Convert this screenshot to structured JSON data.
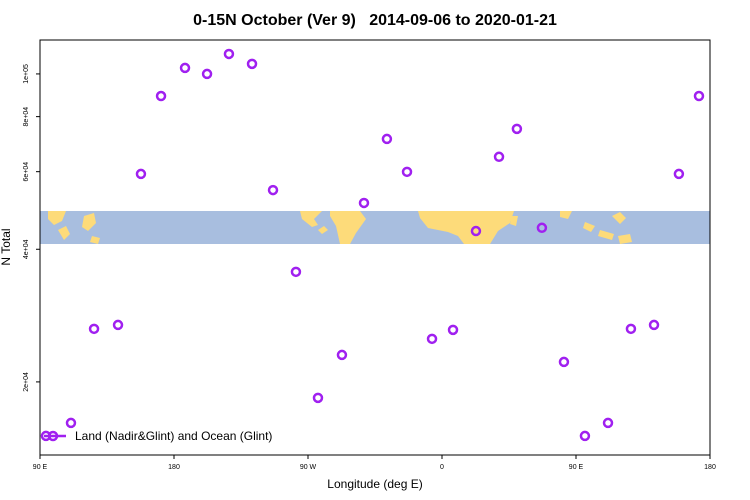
{
  "chart_data": {
    "type": "scatter",
    "title": "0-15N October (Ver 9)   2014-09-06 to 2020-01-21",
    "x_label": "Longitude (deg E)",
    "y_label": "N Total",
    "log_y": true,
    "legend": "lower left",
    "xlim": [
      90,
      540
    ],
    "ylim": [
      13650,
      119400
    ],
    "xticks": [
      {
        "value": 90,
        "label": "90 E"
      },
      {
        "value": 180,
        "label": "180"
      },
      {
        "value": 270,
        "label": "90 W"
      },
      {
        "value": 360,
        "label": "0"
      },
      {
        "value": 450,
        "label": "90 E"
      },
      {
        "value": 540,
        "label": "180"
      }
    ],
    "yticks": [
      {
        "value": 20000,
        "label": "2e+04"
      },
      {
        "value": 40000,
        "label": "4e+04"
      },
      {
        "value": 60000,
        "label": "6e+04"
      },
      {
        "value": 80000,
        "label": "8e+04"
      },
      {
        "value": 100000,
        "label": "1e+05"
      }
    ],
    "series": [
      {
        "name": "Land (Nadir&Glint) and Ocean (Glint)",
        "color": "#a020f0",
        "x": [
          94,
          110.8,
          126.3,
          142.4,
          157.8,
          171.3,
          187.4,
          202.2,
          216.9,
          232.4,
          246.5,
          261.9,
          276.7,
          292.8,
          307.6,
          323,
          336.5,
          353.3,
          367.4,
          382.8,
          398.3,
          410.3,
          427.1,
          441.9,
          456,
          471.5,
          486.9,
          502.4,
          519.1,
          532.6
        ],
        "values": [
          15080,
          16140,
          26390,
          26940,
          59300,
          89100,
          103200,
          100000,
          111000,
          105400,
          54500,
          35550,
          18400,
          23030,
          50950,
          71200,
          59950,
          25050,
          26250,
          44000,
          64850,
          75050,
          44750,
          22200,
          15080,
          16140,
          26390,
          26940,
          59300,
          89100
        ]
      }
    ]
  }
}
